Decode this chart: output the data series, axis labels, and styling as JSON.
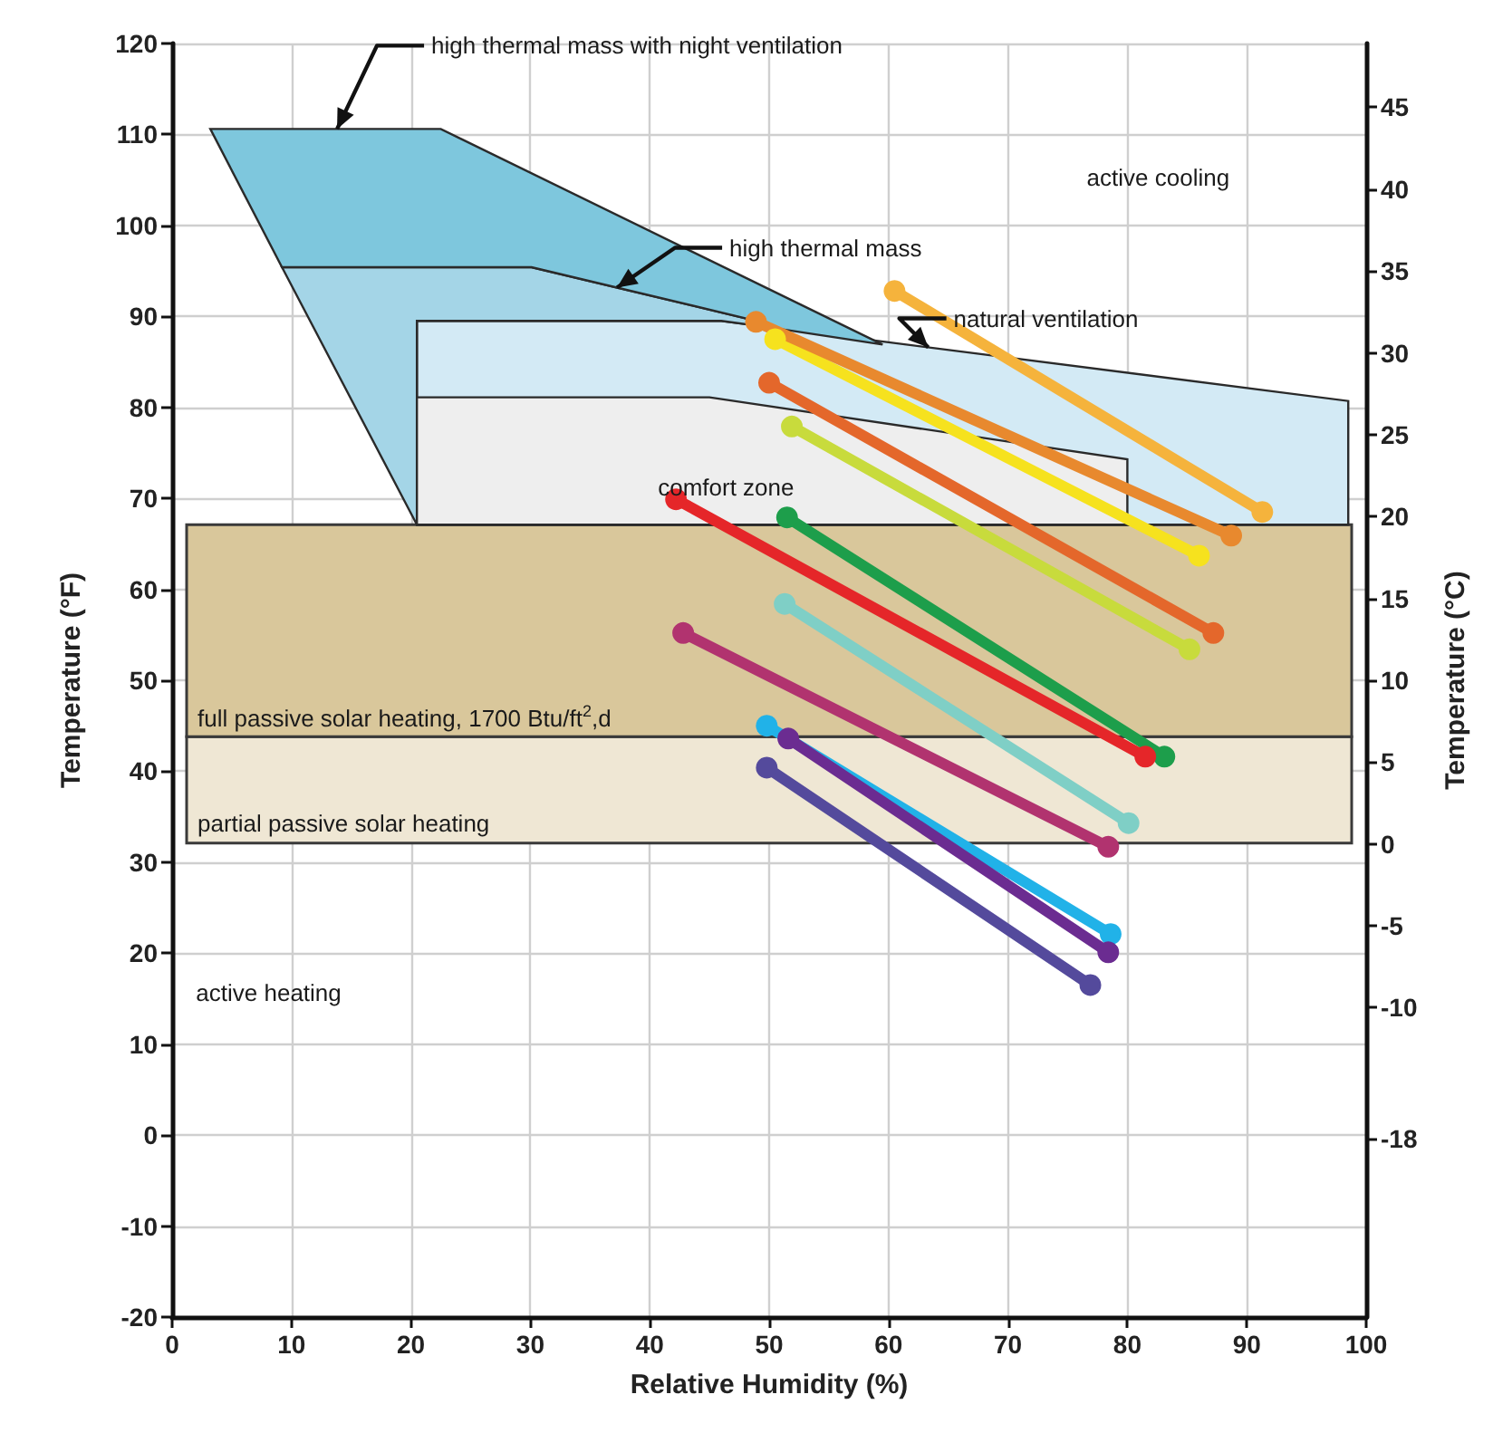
{
  "chart_data": {
    "type": "line",
    "xlabel": "Relative Humidity (%)",
    "ylabel": "Temperature (°F)",
    "y2label": "Temperature (°C)",
    "xlim": [
      0,
      100
    ],
    "xticks": [
      0,
      10,
      20,
      30,
      40,
      50,
      60,
      70,
      80,
      90,
      100
    ],
    "ylim": [
      -20,
      120
    ],
    "yticks": [
      -20,
      -10,
      0,
      10,
      20,
      30,
      40,
      50,
      60,
      70,
      80,
      90,
      100,
      110,
      120
    ],
    "y2lim": [
      -28.9,
      48.9
    ],
    "y2ticks": [
      -18,
      -10,
      -5,
      0,
      5,
      10,
      15,
      20,
      25,
      30,
      35,
      40,
      45
    ],
    "grid": true,
    "marker": "circle",
    "line_style": "solid",
    "annotations": [
      "active cooling",
      "active heating"
    ],
    "bands": [
      {
        "axis": "y",
        "from": 32.1,
        "to": 43.8,
        "label": "partial passive solar heating",
        "color": "#efe7d4"
      },
      {
        "axis": "y",
        "from": 43.8,
        "to": 67.1,
        "label": "full passive solar heating, 1700 Btu/ft$^{2}$,d",
        "color": "#d9c79b"
      }
    ],
    "series": [
      {
        "type": "area",
        "marker": "none",
        "name": "natural ventilation",
        "color": "#d3eaf5",
        "x": [
          20.5,
          20.5,
          46,
          98.5,
          98.5
        ],
        "values": [
          67.1,
          89.5,
          89.5,
          80.7,
          67.1
        ]
      },
      {
        "type": "area",
        "marker": "none",
        "name": "high thermal mass",
        "color": "#a4d5e7",
        "x": [
          20.5,
          9.2,
          30.1,
          48,
          50,
          46,
          20.5
        ],
        "values": [
          67.1,
          95.4,
          95.4,
          89.8,
          88.8,
          89.5,
          89.5
        ]
      },
      {
        "type": "area",
        "marker": "none",
        "name": "high thermal mass with night ventilation",
        "color": "#7ec7dd",
        "x": [
          3.2,
          22.5,
          59.5,
          50,
          48,
          30.1,
          9.2
        ],
        "values": [
          110.6,
          110.6,
          86.9,
          88.8,
          89.8,
          95.4,
          95.4
        ]
      },
      {
        "type": "area",
        "marker": "none",
        "name": "comfort zone",
        "color": "#eeeeee",
        "x": [
          20.5,
          20.5,
          45,
          80,
          80
        ],
        "values": [
          67.1,
          81.1,
          81.1,
          74.3,
          67.1
        ]
      },
      {
        "color": "#f5b33c",
        "x": [
          60.5,
          91.3
        ],
        "values": [
          92.8,
          68.5
        ]
      },
      {
        "color": "#f6e21e",
        "x": [
          50.5,
          86
        ],
        "values": [
          87.5,
          63.7
        ]
      },
      {
        "color": "#e8892e",
        "x": [
          48.9,
          88.7
        ],
        "values": [
          89.4,
          65.9
        ]
      },
      {
        "color": "#e4672b",
        "x": [
          50,
          87.2
        ],
        "values": [
          82.7,
          55.2
        ]
      },
      {
        "color": "#c8db3c",
        "x": [
          51.9,
          85.2
        ],
        "values": [
          77.9,
          53.4
        ]
      },
      {
        "color": "#1d9e4b",
        "x": [
          51.5,
          83.1
        ],
        "values": [
          67.9,
          41.6
        ]
      },
      {
        "color": "#e52629",
        "x": [
          42.2,
          81.5
        ],
        "values": [
          69.9,
          41.6
        ]
      },
      {
        "color": "#7fcfc6",
        "x": [
          51.3,
          80.1
        ],
        "values": [
          58.4,
          34.3
        ]
      },
      {
        "color": "#b1336f",
        "x": [
          42.8,
          78.4
        ],
        "values": [
          55.2,
          31.7
        ]
      },
      {
        "color": "#544a9c",
        "x": [
          49.8,
          76.9
        ],
        "values": [
          40.4,
          16.5
        ]
      },
      {
        "color": "#21b2e8",
        "x": [
          49.8,
          78.6
        ],
        "values": [
          45,
          22.1
        ]
      },
      {
        "color": "#6b2c91",
        "x": [
          51.6,
          78.4
        ],
        "values": [
          43.6,
          20.1
        ]
      }
    ]
  }
}
